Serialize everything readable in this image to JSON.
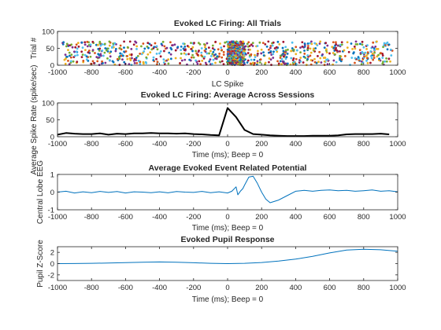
{
  "colors": {
    "axis": "#262626",
    "line_black": "#000000",
    "line_blue": "#0072BD",
    "raster": [
      "#0072BD",
      "#D95319",
      "#EDB120",
      "#7E2F8E",
      "#77AC30",
      "#4DBEEE",
      "#A2142F"
    ]
  },
  "chart_data": [
    {
      "type": "scatter",
      "title": "Evoked LC Firing: All Trials",
      "xlabel": "LC Spike",
      "ylabel": "Trial #",
      "xlim": [
        -1000,
        1000
      ],
      "ylim": [
        0,
        100
      ],
      "xticks": [
        -1000,
        -800,
        -600,
        -400,
        -200,
        0,
        200,
        400,
        600,
        800,
        1000
      ],
      "yticks": [
        0,
        50,
        100
      ],
      "trials": 70,
      "background_spikes_per_trial": 11,
      "evoked_window": [
        0,
        100
      ],
      "evoked_spikes_per_trial": 5
    },
    {
      "type": "line",
      "title": "Evoked LC Firing: Average Across Sessions",
      "xlabel": "Time (ms); Beep = 0",
      "ylabel": "Average Spike Rate (spike/sec)",
      "xlim": [
        -1000,
        1000
      ],
      "ylim": [
        0,
        100
      ],
      "xticks": [
        -1000,
        -800,
        -600,
        -400,
        -200,
        0,
        200,
        400,
        600,
        800,
        1000
      ],
      "yticks": [
        0,
        50,
        100
      ],
      "x": [
        -1000,
        -950,
        -900,
        -850,
        -800,
        -750,
        -700,
        -650,
        -600,
        -550,
        -500,
        -450,
        -400,
        -350,
        -300,
        -250,
        -200,
        -150,
        -100,
        -50,
        0,
        50,
        100,
        150,
        200,
        250,
        300,
        350,
        400,
        450,
        500,
        550,
        600,
        650,
        700,
        750,
        800,
        850,
        900,
        950
      ],
      "values": [
        6,
        11,
        9,
        8,
        8,
        10,
        6,
        9,
        8,
        10,
        10,
        11,
        10,
        10,
        9,
        10,
        8,
        7,
        5,
        4,
        85,
        58,
        20,
        8,
        6,
        4,
        3,
        2,
        2,
        2,
        3,
        3,
        3,
        4,
        7,
        8,
        8,
        8,
        9,
        7
      ]
    },
    {
      "type": "line",
      "title": "Average Evoked Event Related Potential",
      "xlabel": "Time (ms); Beep = 0",
      "ylabel": "Central Lobe EEG",
      "xlim": [
        -1000,
        1000
      ],
      "ylim": [
        -1,
        1
      ],
      "xticks": [
        -1000,
        -800,
        -600,
        -400,
        -200,
        0,
        200,
        400,
        600,
        800,
        1000
      ],
      "yticks": [
        -1,
        0,
        1
      ],
      "x": [
        -1000,
        -950,
        -900,
        -850,
        -800,
        -750,
        -700,
        -650,
        -600,
        -550,
        -500,
        -450,
        -400,
        -350,
        -300,
        -250,
        -200,
        -150,
        -100,
        -50,
        0,
        25,
        50,
        60,
        75,
        90,
        100,
        125,
        150,
        175,
        200,
        225,
        250,
        300,
        350,
        400,
        450,
        500,
        550,
        600,
        650,
        700,
        750,
        800,
        850,
        900,
        950,
        1000
      ],
      "values": [
        0.0,
        0.05,
        -0.05,
        0.02,
        -0.03,
        0.04,
        -0.02,
        0.03,
        -0.05,
        0.02,
        0.0,
        -0.03,
        0.02,
        -0.04,
        0.03,
        0.0,
        -0.02,
        0.04,
        -0.03,
        0.02,
        -0.05,
        0.05,
        0.3,
        -0.15,
        0.05,
        0.2,
        0.4,
        0.85,
        0.9,
        0.5,
        0.0,
        -0.4,
        -0.6,
        -0.45,
        -0.2,
        0.05,
        0.1,
        0.05,
        0.1,
        0.12,
        0.08,
        0.1,
        0.05,
        0.08,
        0.12,
        0.05,
        0.08,
        0.02
      ]
    },
    {
      "type": "line",
      "title": "Evoked Pupil Response",
      "xlabel": "Time (ms); Beep = 0",
      "ylabel": "Pupil Z-Score",
      "xlim": [
        -1000,
        1000
      ],
      "ylim": [
        -3,
        3
      ],
      "xticks": [
        -1000,
        -800,
        -600,
        -400,
        -200,
        0,
        200,
        400,
        600,
        800,
        1000
      ],
      "yticks": [
        -2,
        0,
        2
      ],
      "x": [
        -1000,
        -900,
        -800,
        -700,
        -600,
        -500,
        -400,
        -300,
        -200,
        -100,
        0,
        100,
        200,
        300,
        400,
        500,
        600,
        700,
        800,
        900,
        1000
      ],
      "values": [
        0.0,
        0.02,
        0.05,
        0.1,
        0.18,
        0.25,
        0.3,
        0.25,
        0.15,
        0.05,
        0.0,
        0.05,
        0.2,
        0.45,
        0.8,
        1.3,
        1.9,
        2.4,
        2.55,
        2.45,
        2.2
      ]
    }
  ]
}
